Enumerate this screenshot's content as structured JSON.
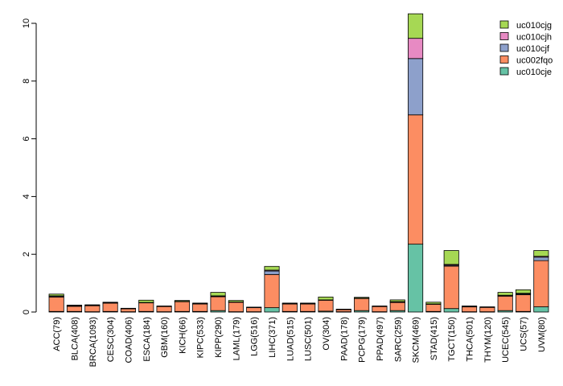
{
  "chart_data": {
    "type": "bar",
    "stacked": true,
    "title": "",
    "xlabel": "",
    "ylabel": "",
    "ylim": [
      0,
      10.4
    ],
    "yticks": [
      0,
      2,
      4,
      6,
      8,
      10
    ],
    "grid": false,
    "legend_position": "top-right",
    "categories": [
      "ACC(79)",
      "BLCA(408)",
      "BRCA(1093)",
      "CESC(304)",
      "COAD(406)",
      "ESCA(184)",
      "GBM(160)",
      "KICH(66)",
      "KIPC(533)",
      "KIPP(290)",
      "LAML(179)",
      "LGG(516)",
      "LIHC(371)",
      "LUAD(515)",
      "LUSC(501)",
      "OV(304)",
      "PAAD(178)",
      "PCPG(179)",
      "PPAD(497)",
      "SARC(259)",
      "SKCM(469)",
      "STAD(415)",
      "TGCT(150)",
      "THCA(501)",
      "THYM(120)",
      "UCEC(545)",
      "UCS(57)",
      "UVM(80)"
    ],
    "series": [
      {
        "name": "uc010cje",
        "color": "#66c2a5",
        "values": [
          0.02,
          0.02,
          0.01,
          0.02,
          0.01,
          0.02,
          0.01,
          0.02,
          0.02,
          0.05,
          0.01,
          0.01,
          0.15,
          0.02,
          0.02,
          0.03,
          0.01,
          0.05,
          0.01,
          0.05,
          2.35,
          0.02,
          0.12,
          0.01,
          0.01,
          0.05,
          0.02,
          0.18
        ]
      },
      {
        "name": "uc002fqo",
        "color": "#fc8d62",
        "values": [
          0.5,
          0.18,
          0.21,
          0.29,
          0.1,
          0.3,
          0.18,
          0.34,
          0.26,
          0.48,
          0.33,
          0.14,
          1.15,
          0.26,
          0.26,
          0.38,
          0.07,
          0.42,
          0.18,
          0.28,
          4.48,
          0.25,
          1.47,
          0.17,
          0.15,
          0.5,
          0.58,
          1.6
        ]
      },
      {
        "name": "uc010cjf",
        "color": "#8da0cb",
        "values": [
          0.03,
          0.01,
          0.01,
          0.01,
          0.0,
          0.01,
          0.0,
          0.01,
          0.01,
          0.02,
          0.01,
          0.0,
          0.12,
          0.01,
          0.01,
          0.01,
          0.0,
          0.01,
          0.0,
          0.02,
          1.95,
          0.01,
          0.03,
          0.01,
          0.0,
          0.02,
          0.03,
          0.12
        ]
      },
      {
        "name": "uc010cjh",
        "color": "#e78ac3",
        "values": [
          0.01,
          0.01,
          0.0,
          0.0,
          0.0,
          0.0,
          0.0,
          0.0,
          0.0,
          0.01,
          0.0,
          0.0,
          0.03,
          0.0,
          0.0,
          0.0,
          0.0,
          0.0,
          0.0,
          0.01,
          0.7,
          0.0,
          0.03,
          0.0,
          0.0,
          0.01,
          0.02,
          0.03
        ]
      },
      {
        "name": "uc010cjg",
        "color": "#a6d854",
        "values": [
          0.06,
          0.02,
          0.02,
          0.02,
          0.02,
          0.08,
          0.02,
          0.03,
          0.02,
          0.12,
          0.05,
          0.02,
          0.13,
          0.02,
          0.02,
          0.1,
          0.02,
          0.03,
          0.02,
          0.06,
          0.85,
          0.06,
          0.48,
          0.02,
          0.02,
          0.1,
          0.12,
          0.2
        ]
      }
    ],
    "legend_order": [
      "uc010cjg",
      "uc010cjh",
      "uc010cjf",
      "uc002fqo",
      "uc010cje"
    ]
  }
}
